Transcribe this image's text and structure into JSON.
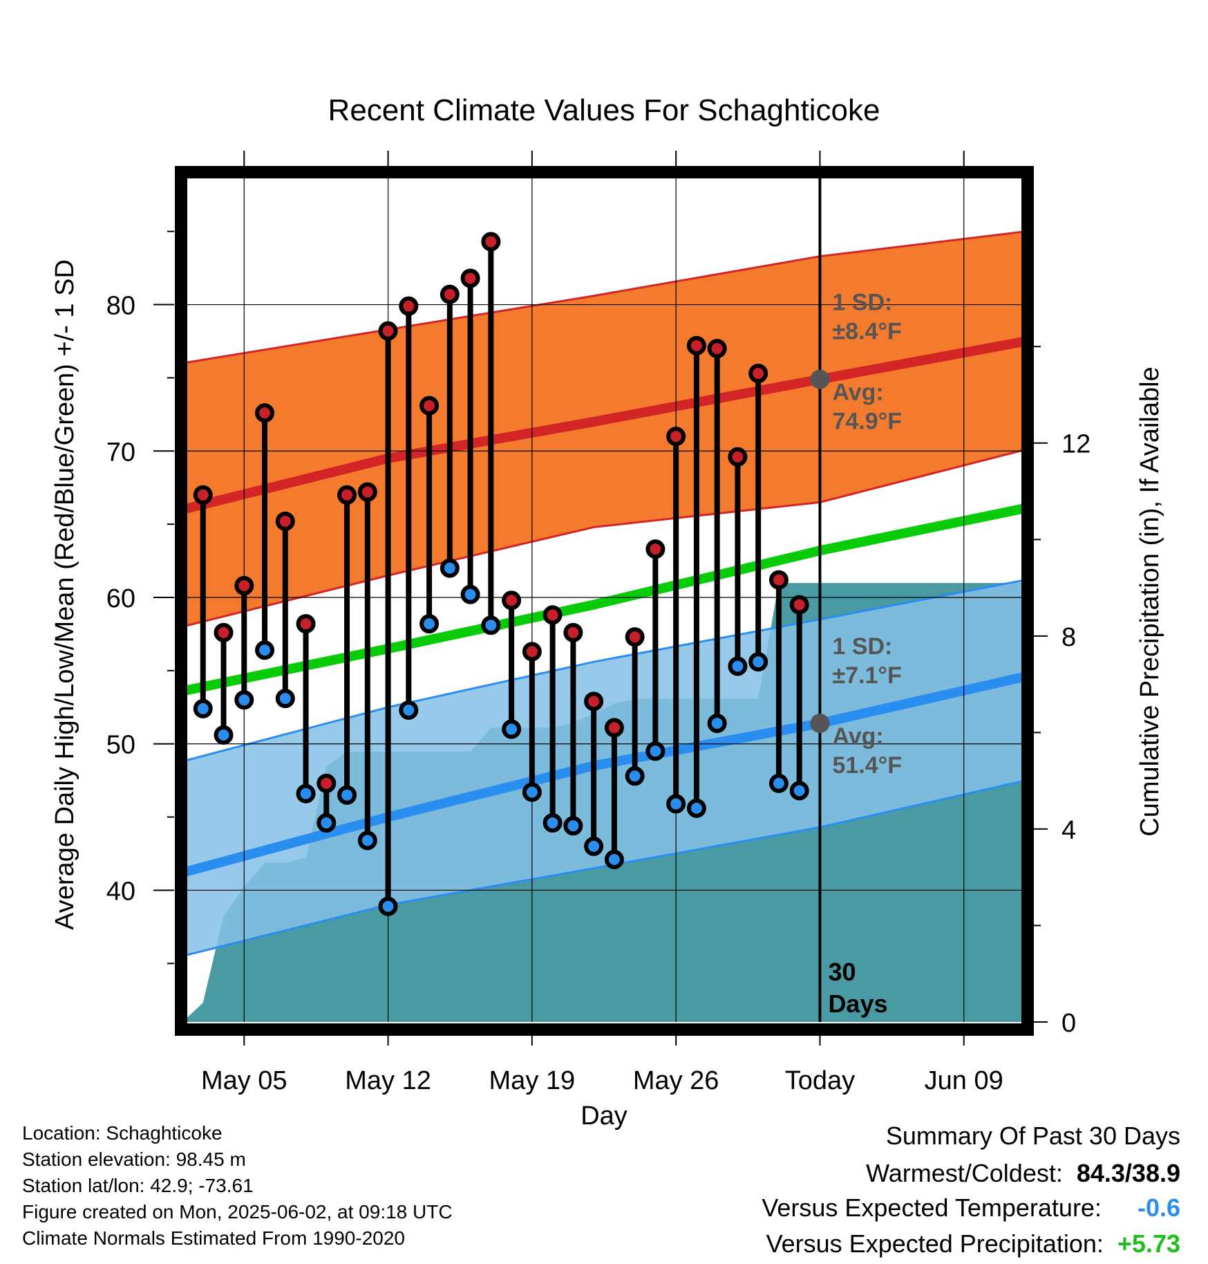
{
  "chart_data": {
    "type": "line",
    "title": "Recent Climate Values For Schaghticoke",
    "xlabel": "Day",
    "ylabel_left": "Average Daily High/Low/Mean (Red/Blue/Green) +/- 1 SD",
    "ylabel_right": "Cumulative Precipitation (in), If Available",
    "x_start": "2025-05-02",
    "x_end": "2025-06-12",
    "ylim_left": [
      31,
      89
    ],
    "ylim_right": [
      0,
      17.6
    ],
    "x_ticks": [
      {
        "date": "2025-05-05",
        "label": "May 05"
      },
      {
        "date": "2025-05-12",
        "label": "May 12"
      },
      {
        "date": "2025-05-19",
        "label": "May 19"
      },
      {
        "date": "2025-05-26",
        "label": "May 26"
      },
      {
        "date": "2025-06-02",
        "label": "Today"
      },
      {
        "date": "2025-06-09",
        "label": "Jun 09"
      }
    ],
    "y_ticks_left": [
      40,
      50,
      60,
      70,
      80
    ],
    "y_ticks_right": [
      0,
      4,
      8,
      12
    ],
    "grid": true,
    "today": "2025-06-02",
    "today_label": [
      "30",
      "Days"
    ],
    "normals": {
      "dates": [
        "2025-05-02",
        "2025-05-12",
        "2025-05-22",
        "2025-06-02",
        "2025-06-12"
      ],
      "high_mean": [
        66.0,
        69.5,
        72.0,
        74.9,
        77.5
      ],
      "high_upper": [
        76.0,
        78.3,
        80.6,
        83.3,
        85.0
      ],
      "high_lower": [
        58.0,
        61.5,
        64.8,
        66.5,
        70.1
      ],
      "mean": [
        53.6,
        56.5,
        59.5,
        63.2,
        66.1
      ],
      "low_mean": [
        41.2,
        45.0,
        48.5,
        51.4,
        54.6
      ],
      "low_upper": [
        48.8,
        52.5,
        55.6,
        58.5,
        61.2
      ],
      "low_lower": [
        35.5,
        39.0,
        41.5,
        44.3,
        47.5
      ]
    },
    "annotations": {
      "high_sd": "1 SD:",
      "high_sd_value": "±8.4°F",
      "high_avg": "Avg:",
      "high_avg_value": "74.9°F",
      "low_sd": "1 SD:",
      "low_sd_value": "±7.1°F",
      "low_avg": "Avg:",
      "low_avg_value": "51.4°F"
    },
    "daily": {
      "dates": [
        "2025-05-03",
        "2025-05-04",
        "2025-05-05",
        "2025-05-06",
        "2025-05-07",
        "2025-05-08",
        "2025-05-09",
        "2025-05-10",
        "2025-05-11",
        "2025-05-12",
        "2025-05-13",
        "2025-05-14",
        "2025-05-15",
        "2025-05-16",
        "2025-05-17",
        "2025-05-18",
        "2025-05-19",
        "2025-05-20",
        "2025-05-21",
        "2025-05-22",
        "2025-05-23",
        "2025-05-24",
        "2025-05-25",
        "2025-05-26",
        "2025-05-27",
        "2025-05-28",
        "2025-05-29",
        "2025-05-30",
        "2025-05-31",
        "2025-06-01"
      ],
      "high": [
        67.0,
        57.6,
        60.8,
        72.6,
        65.2,
        58.2,
        47.3,
        67.0,
        67.2,
        78.2,
        79.9,
        73.1,
        80.7,
        81.8,
        84.3,
        59.8,
        56.3,
        58.8,
        57.6,
        52.9,
        51.1,
        57.3,
        63.3,
        71.0,
        77.2,
        77.0,
        69.6,
        75.3,
        61.2,
        59.5
      ],
      "low": [
        52.4,
        50.6,
        53.0,
        56.4,
        53.1,
        46.6,
        44.6,
        46.5,
        43.4,
        38.9,
        52.3,
        58.2,
        62.0,
        60.2,
        58.1,
        51.0,
        46.7,
        44.6,
        44.4,
        43.0,
        42.1,
        47.8,
        49.5,
        45.9,
        45.6,
        51.4,
        55.3,
        55.6,
        47.3,
        46.8
      ]
    },
    "precip": {
      "dates": [
        "2025-05-02",
        "2025-05-03",
        "2025-05-04",
        "2025-05-05",
        "2025-05-06",
        "2025-05-07",
        "2025-05-08",
        "2025-05-09",
        "2025-05-10",
        "2025-05-11",
        "2025-05-12",
        "2025-05-13",
        "2025-05-14",
        "2025-05-15",
        "2025-05-16",
        "2025-05-17",
        "2025-05-18",
        "2025-05-19",
        "2025-05-20",
        "2025-05-21",
        "2025-05-22",
        "2025-05-23",
        "2025-05-24",
        "2025-05-25",
        "2025-05-26",
        "2025-05-27",
        "2025-05-28",
        "2025-05-29",
        "2025-05-30",
        "2025-05-31",
        "2025-06-01",
        "2025-06-12"
      ],
      "cumulative": [
        0.0,
        0.4,
        2.2,
        2.8,
        3.3,
        3.3,
        3.4,
        5.3,
        5.6,
        5.6,
        5.6,
        5.6,
        5.6,
        5.6,
        5.6,
        6.1,
        6.1,
        6.1,
        6.1,
        6.2,
        6.4,
        6.6,
        6.7,
        6.7,
        6.7,
        6.7,
        6.7,
        6.7,
        6.7,
        9.1,
        9.1,
        9.1
      ]
    }
  },
  "info": {
    "location": "Location: Schaghticoke",
    "elevation": "Station elevation: 98.45 m",
    "latlon": "Station lat/lon: 42.9; -73.61",
    "created": "Figure created on Mon, 2025-06-02, at 09:18 UTC",
    "normals_note": "Climate Normals Estimated From 1990-2020"
  },
  "summary": {
    "title": "Summary Of Past 30 Days",
    "warm_cold_label": "Warmest/Coldest:",
    "warm_cold_value": "84.3/38.9",
    "temp_label": "Versus Expected Temperature:",
    "temp_value": "-0.6",
    "precip_label": "Versus Expected Precipitation:",
    "precip_value": "+5.73"
  },
  "colors": {
    "high_band": "#f47b2d",
    "high_line": "#d42526",
    "high_band_edge": "#d42526",
    "low_band": "#85c1e6",
    "low_line": "#2a8ef0",
    "mean_line": "#08cc08",
    "precip": "#4a9aa3",
    "high_dot": "#c8202a",
    "low_dot": "#2a8ef0",
    "annotation": "#555555",
    "temp_value": "#2a8ef0",
    "precip_value": "#1fbd1f"
  }
}
